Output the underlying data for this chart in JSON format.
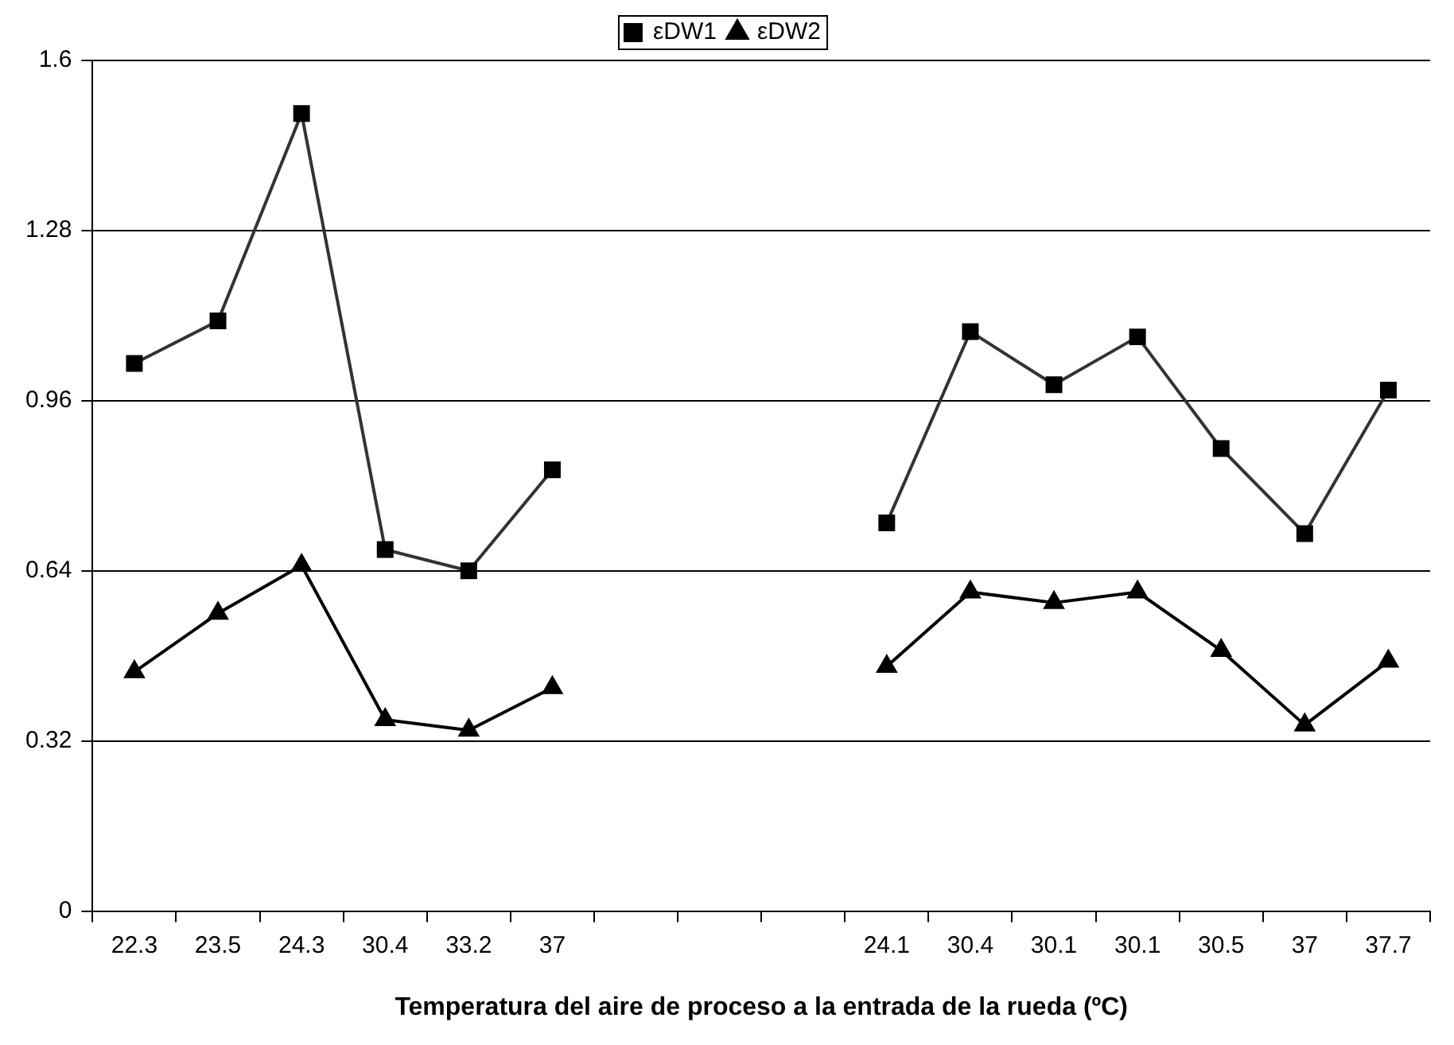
{
  "chart_data": {
    "type": "line",
    "xlabel": "Temperatura del aire de proceso a la entrada de la rueda (ºC)",
    "categories": [
      "22.3",
      "23.5",
      "24.3",
      "30.4",
      "33.2",
      "37",
      null,
      null,
      null,
      "24.1",
      "30.4",
      "30.1",
      "30.1",
      "30.5",
      "37",
      "37.7"
    ],
    "series": [
      {
        "name": "εDW1",
        "color": "#333333",
        "marker": "square",
        "values": [
          1.03,
          1.11,
          1.5,
          0.68,
          0.64,
          0.83,
          null,
          null,
          null,
          0.73,
          1.09,
          0.99,
          1.08,
          0.87,
          0.71,
          0.98
        ]
      },
      {
        "name": "εDW2",
        "color": "#000000",
        "marker": "triangle",
        "values": [
          0.45,
          0.56,
          0.65,
          0.36,
          0.34,
          0.42,
          null,
          null,
          null,
          0.46,
          0.6,
          0.58,
          0.6,
          0.49,
          0.35,
          0.47
        ]
      }
    ],
    "ylim": [
      0,
      1.6
    ],
    "yticks": [
      0,
      0.32,
      0.64,
      0.96,
      1.28,
      1.6
    ],
    "grid": "y",
    "legend": "top",
    "line_style": "solid"
  }
}
